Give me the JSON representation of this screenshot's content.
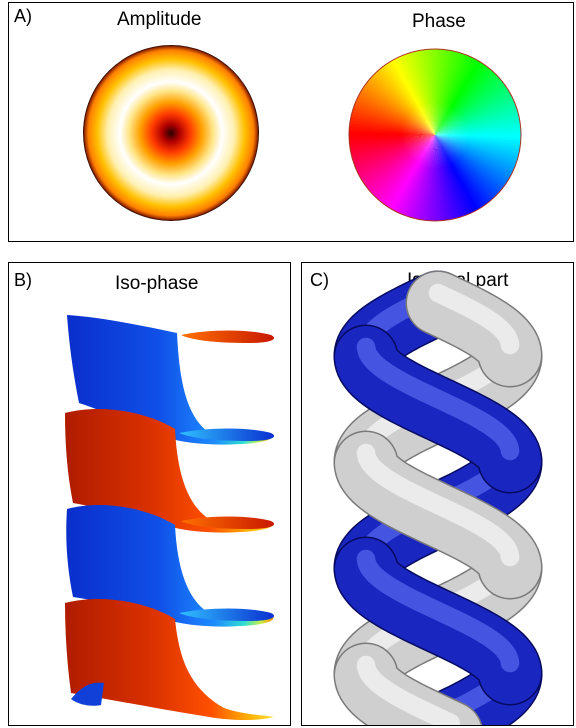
{
  "panels": [
    {
      "letter": "A)",
      "titles": [
        "Amplitude",
        "Phase"
      ]
    },
    {
      "letter": "B)",
      "title": "Iso-phase"
    },
    {
      "letter": "C)",
      "title": "Iso-real part"
    }
  ],
  "colors": {
    "amplitude_map": [
      "#3a0000",
      "#c40000",
      "#ff4a00",
      "#ffb000",
      "#ffffff",
      "#ffd230",
      "#ff8a00",
      "#7a1a00"
    ],
    "phase_wheel": [
      "#ff0000",
      "#ffff00",
      "#00ff00",
      "#00ffff",
      "#0000ff",
      "#ff00ff"
    ],
    "iso_phase_blue": "#0a3ddc",
    "iso_phase_red": "#d42800",
    "helix_blue": "#0a14a8",
    "helix_gray": "#c8c8c8"
  }
}
